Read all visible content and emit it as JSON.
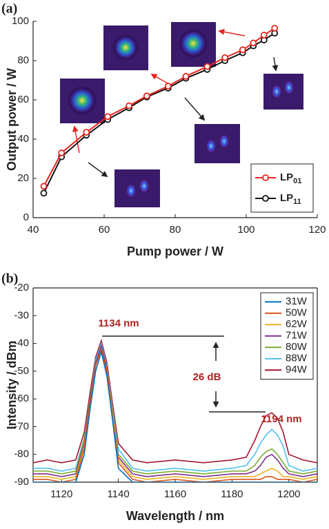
{
  "chart_data": [
    {
      "type": "line",
      "panel_label": "(a)",
      "xlabel": "Pump power / W",
      "ylabel": "Output power / W",
      "x": [
        43,
        48,
        55,
        61,
        67,
        72,
        78,
        83,
        89,
        94,
        99,
        102,
        105,
        108
      ],
      "series": [
        {
          "name": "LP01",
          "color": "#e8251f",
          "values": [
            16,
            33,
            43.5,
            51.5,
            57,
            62,
            67,
            72,
            77,
            81.5,
            85.5,
            89,
            93,
            96.5
          ]
        },
        {
          "name": "LP11",
          "color": "#111111",
          "values": [
            12.5,
            31,
            42,
            50,
            56,
            61.5,
            66,
            71,
            75.5,
            80,
            84,
            87.5,
            90.5,
            94
          ]
        }
      ],
      "xlim": [
        40,
        120
      ],
      "xticks": [
        40,
        60,
        80,
        100,
        120
      ],
      "ylim": [
        0,
        100
      ],
      "yticks": [
        0,
        20,
        40,
        60,
        80,
        100
      ],
      "markers": true,
      "box": false,
      "legend": "lower right"
    },
    {
      "type": "line",
      "panel_label": "(b)",
      "xlabel": "Wavelength / nm",
      "ylabel": "Intensity / dBm",
      "x": [
        1110,
        1115,
        1120,
        1125,
        1128,
        1130,
        1132,
        1134,
        1136,
        1138,
        1140,
        1145,
        1150,
        1160,
        1170,
        1180,
        1185,
        1188,
        1190,
        1192,
        1194,
        1196,
        1198,
        1200,
        1205,
        1210
      ],
      "series": [
        {
          "name": "31W",
          "color": "#0072bd",
          "values": [
            -90,
            -90,
            -90,
            -90,
            -80,
            -64,
            -50,
            -43,
            -52,
            -68,
            -85,
            -90,
            -90,
            -90,
            -90,
            -90,
            -90,
            -90,
            -90,
            -90,
            -90,
            -90,
            -90,
            -90,
            -90,
            -90
          ]
        },
        {
          "name": "50W",
          "color": "#d95319",
          "values": [
            -89,
            -89,
            -90,
            -89,
            -78,
            -62,
            -48,
            -42,
            -50,
            -67,
            -83,
            -89,
            -90,
            -89,
            -90,
            -89,
            -89,
            -89,
            -89,
            -88,
            -88,
            -89,
            -89,
            -89,
            -90,
            -89
          ]
        },
        {
          "name": "62W",
          "color": "#edb120",
          "values": [
            -88,
            -88,
            -89,
            -88,
            -77,
            -62,
            -48,
            -42,
            -50,
            -66,
            -82,
            -88,
            -89,
            -88,
            -89,
            -88,
            -88,
            -88,
            -87,
            -86,
            -85,
            -86,
            -88,
            -88,
            -89,
            -88
          ]
        },
        {
          "name": "71W",
          "color": "#7e2f8e",
          "values": [
            -87,
            -87,
            -88,
            -87,
            -76,
            -61,
            -47,
            -41,
            -49,
            -66,
            -81,
            -87,
            -88,
            -87,
            -88,
            -87,
            -87,
            -86,
            -84,
            -81,
            -80,
            -82,
            -85,
            -87,
            -88,
            -87
          ]
        },
        {
          "name": "80W",
          "color": "#77ac30",
          "values": [
            -86,
            -86,
            -87,
            -86,
            -75,
            -60,
            -47,
            -41,
            -49,
            -65,
            -80,
            -86,
            -87,
            -86,
            -87,
            -86,
            -86,
            -84,
            -81,
            -79,
            -78,
            -80,
            -83,
            -86,
            -87,
            -86
          ]
        },
        {
          "name": "88W",
          "color": "#4dbeee",
          "values": [
            -85,
            -85,
            -86,
            -85,
            -74,
            -60,
            -46,
            -40,
            -48,
            -64,
            -78,
            -85,
            -86,
            -85,
            -86,
            -85,
            -84,
            -80,
            -76,
            -73,
            -71,
            -73,
            -77,
            -84,
            -86,
            -85
          ]
        },
        {
          "name": "94W",
          "color": "#a2142f",
          "values": [
            -83,
            -82,
            -83,
            -82,
            -72,
            -58,
            -45,
            -39,
            -47,
            -62,
            -76,
            -82,
            -83,
            -82,
            -83,
            -82,
            -81,
            -75,
            -70,
            -66,
            -65,
            -67,
            -72,
            -80,
            -82,
            -83
          ]
        }
      ],
      "xlim": [
        1110,
        1210
      ],
      "xticks": [
        1120,
        1140,
        1160,
        1180,
        1200
      ],
      "ylim": [
        -90,
        -20
      ],
      "yticks": [
        -90,
        -80,
        -70,
        -60,
        -50,
        -40,
        -30,
        -20
      ],
      "markers": false,
      "box": true,
      "legend": "upper right",
      "annotations": [
        "1134 nm",
        "26 dB",
        "1194 nm"
      ]
    }
  ]
}
